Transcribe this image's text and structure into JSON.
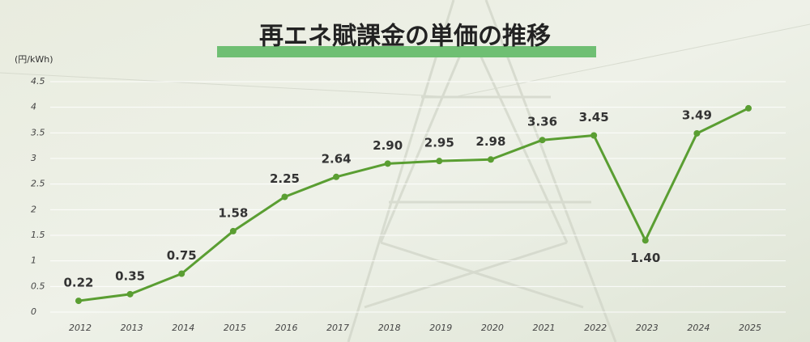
{
  "chart_data": {
    "type": "line",
    "title": "再エネ賦課金の単価の推移",
    "y_label": "(円/kWh)",
    "categories": [
      "2012",
      "2013",
      "2014",
      "2015",
      "2016",
      "2017",
      "2018",
      "2019",
      "2020",
      "2021",
      "2022",
      "2023",
      "2024",
      "2025"
    ],
    "series": [
      {
        "name": "再エネ賦課金",
        "color": "#5a9e32",
        "values": [
          0.22,
          0.35,
          0.75,
          1.58,
          2.25,
          2.64,
          2.9,
          2.95,
          2.98,
          3.36,
          3.45,
          1.4,
          3.49,
          3.98
        ],
        "value_labels": [
          "0.22",
          "0.35",
          "0.75",
          "1.58",
          "2.25",
          "2.64",
          "2.90",
          "2.95",
          "2.98",
          "3.36",
          "3.45",
          "1.40",
          "3.49",
          null
        ]
      }
    ],
    "ylim": [
      0,
      4.5
    ],
    "yticks": [
      0,
      0.5,
      1,
      1.5,
      2,
      2.5,
      3,
      3.5,
      4,
      4.5
    ],
    "grid": true
  }
}
